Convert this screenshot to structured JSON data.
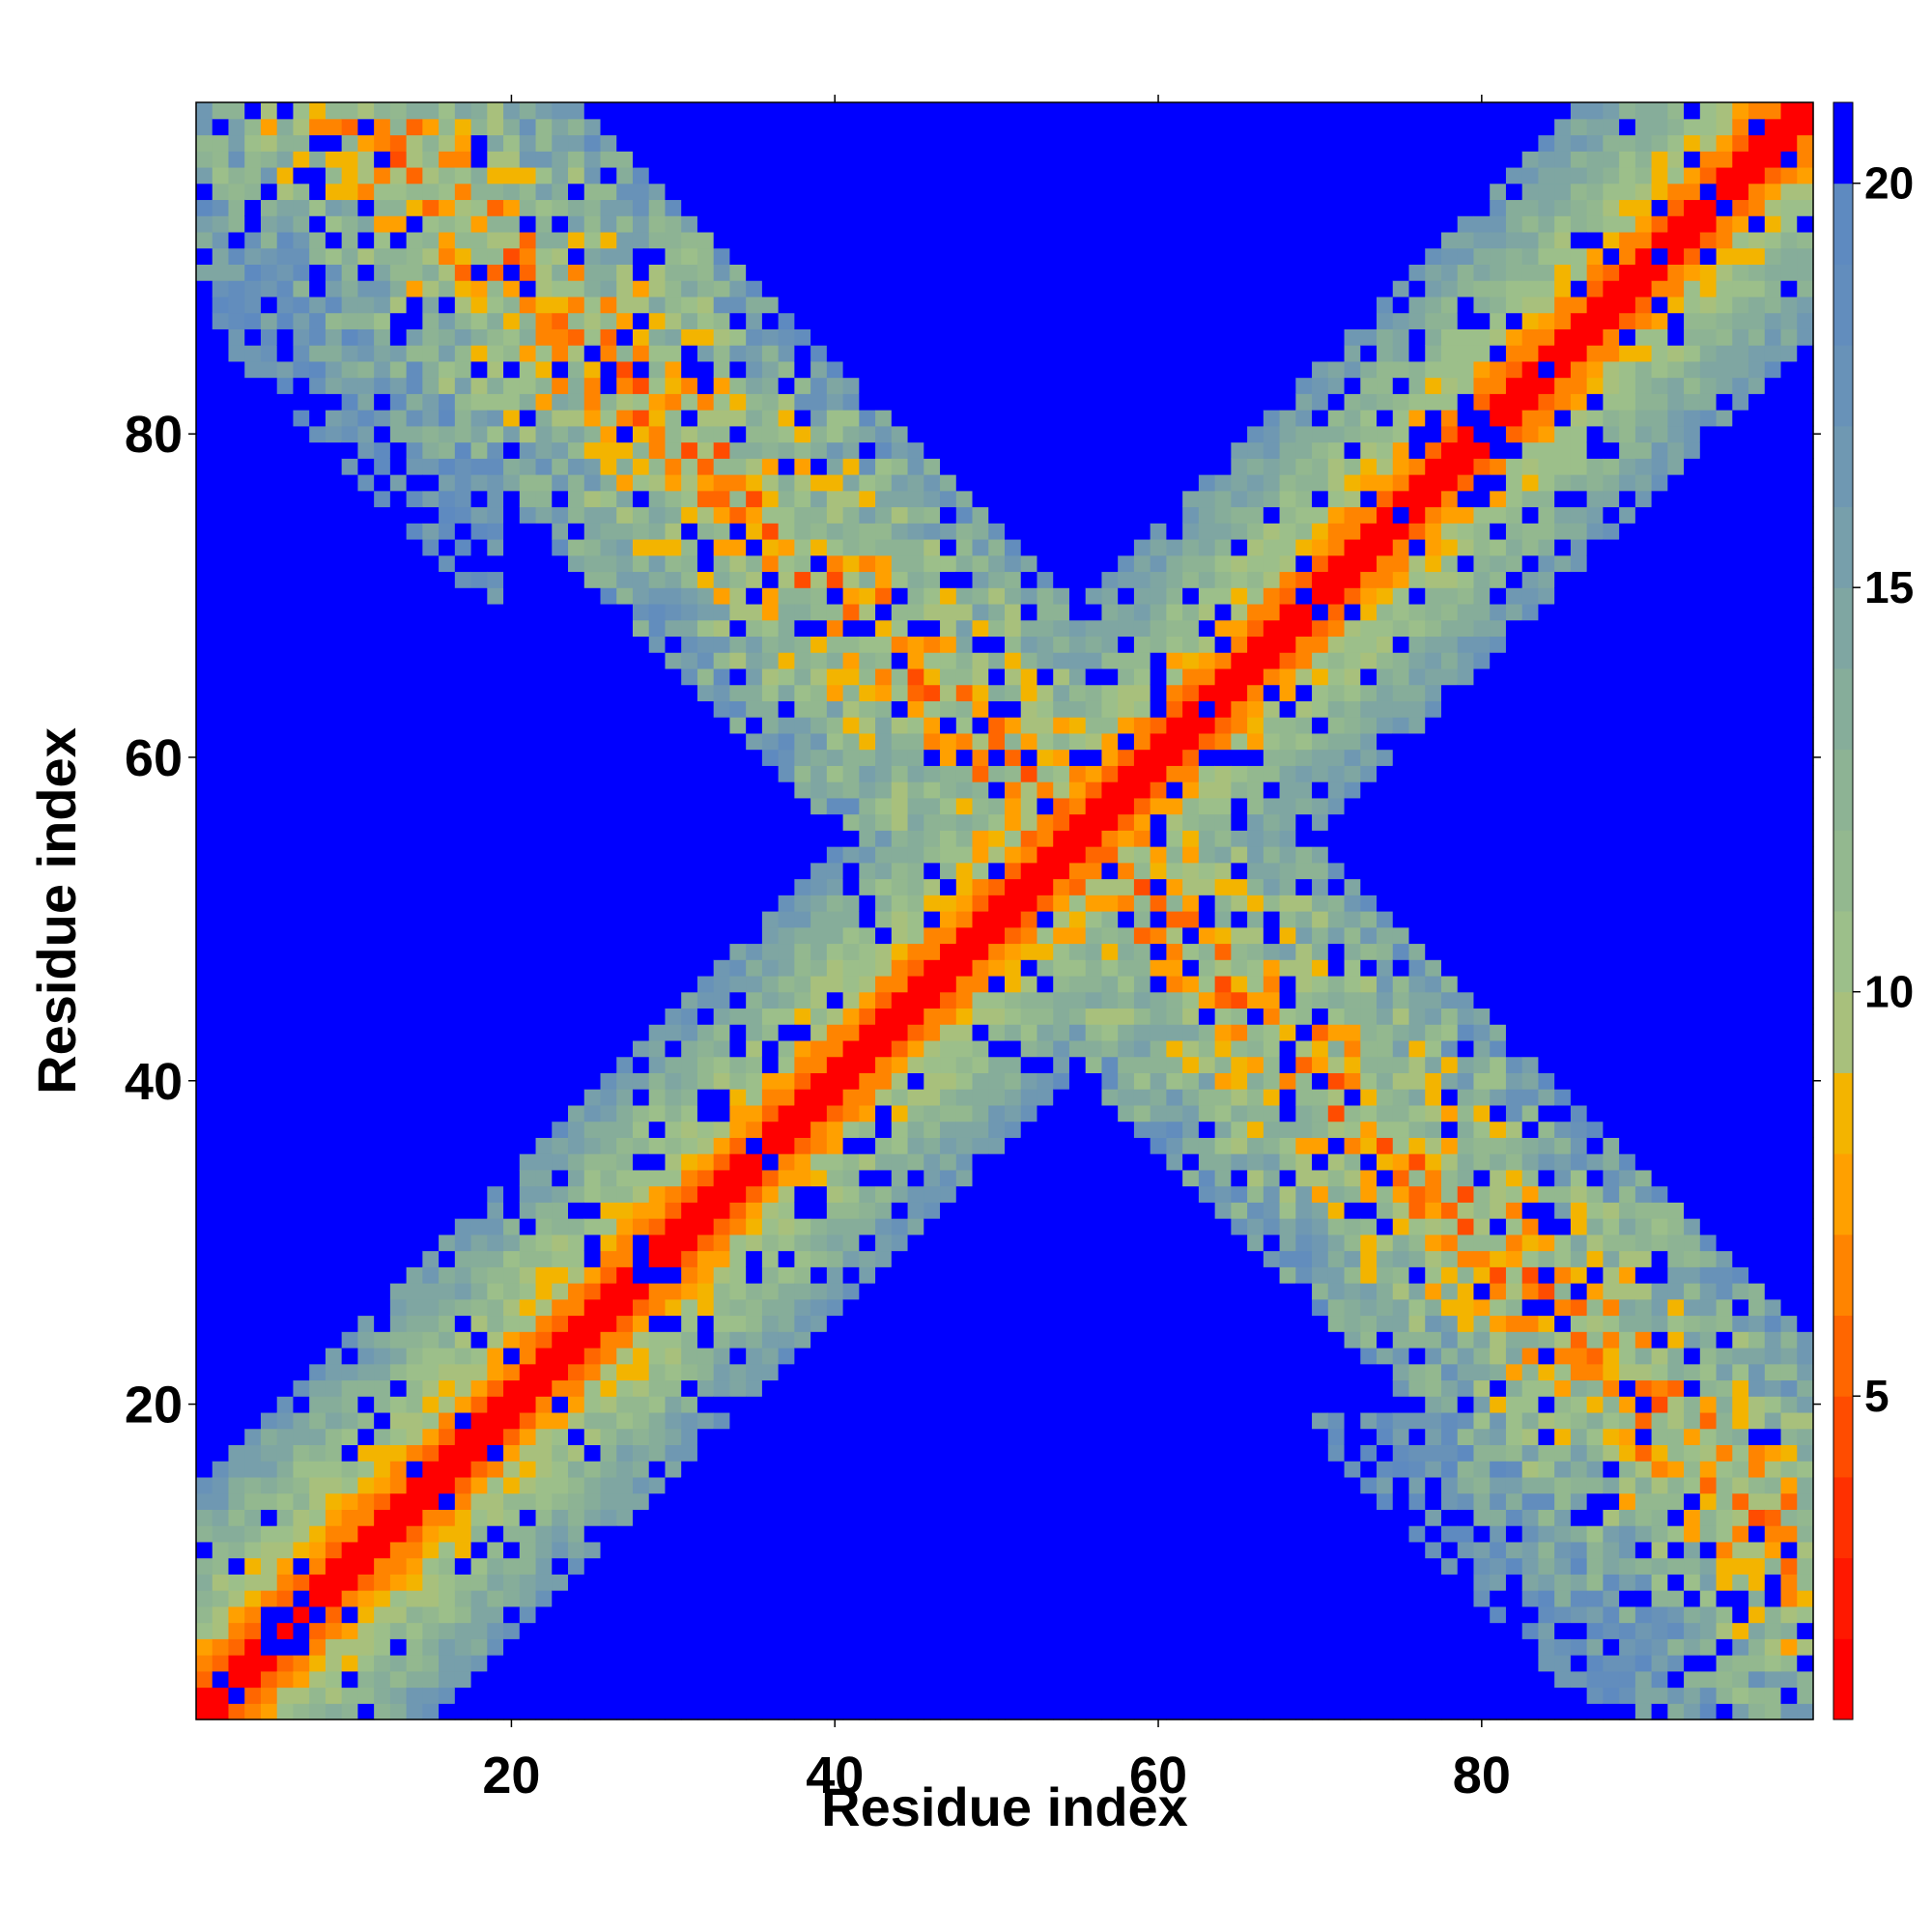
{
  "chart_data": {
    "type": "heatmap",
    "title": "",
    "xlabel": "Residue index",
    "ylabel": "Residue index",
    "n_residues": 100,
    "x_range": [
      1,
      100
    ],
    "y_range": [
      1,
      100
    ],
    "x_ticks": [
      20,
      40,
      60,
      80
    ],
    "y_ticks": [
      20,
      40,
      60,
      80
    ],
    "x_tick_labels": [
      "20",
      "40",
      "60",
      "80"
    ],
    "y_tick_labels": [
      "20",
      "40",
      "60",
      "80"
    ],
    "grid": false,
    "colorbar": {
      "range": [
        1,
        21
      ],
      "ticks": [
        5,
        10,
        15,
        20
      ],
      "tick_labels": [
        "5",
        "10",
        "15",
        "20"
      ],
      "placement": "right",
      "levels": [
        {
          "lo": 1,
          "hi": 2,
          "color": "#ff0000"
        },
        {
          "lo": 2,
          "hi": 3,
          "color": "#ff1800"
        },
        {
          "lo": 3,
          "hi": 4,
          "color": "#ff3000"
        },
        {
          "lo": 4,
          "hi": 5,
          "color": "#ff4c00"
        },
        {
          "lo": 5,
          "hi": 6,
          "color": "#ff6600"
        },
        {
          "lo": 6,
          "hi": 7,
          "color": "#ff8400"
        },
        {
          "lo": 7,
          "hi": 8,
          "color": "#ffa000"
        },
        {
          "lo": 8,
          "hi": 9,
          "color": "#f3b400"
        },
        {
          "lo": 9,
          "hi": 10,
          "color": "#a8c07c"
        },
        {
          "lo": 10,
          "hi": 11,
          "color": "#9cbf8a"
        },
        {
          "lo": 11,
          "hi": 12,
          "color": "#93b88f"
        },
        {
          "lo": 12,
          "hi": 13,
          "color": "#8db394"
        },
        {
          "lo": 13,
          "hi": 14,
          "color": "#86ad9a"
        },
        {
          "lo": 14,
          "hi": 15,
          "color": "#7fa6a2"
        },
        {
          "lo": 15,
          "hi": 16,
          "color": "#779fab"
        },
        {
          "lo": 16,
          "hi": 17,
          "color": "#6f98b2"
        },
        {
          "lo": 17,
          "hi": 18,
          "color": "#6892b8"
        },
        {
          "lo": 18,
          "hi": 19,
          "color": "#628dbd"
        },
        {
          "lo": 19,
          "hi": 20,
          "color": "#5e8ac0"
        },
        {
          "lo": 20,
          "hi": 21,
          "color": "#0000ff"
        }
      ]
    },
    "description_of_values": "Symmetric residue-residue distance map: main diagonal ~1-3, broad diagonal band ~4-15, anti-diagonal band (i+j ~ 110) ~6-19, background >= 20",
    "diagonal_band": {
      "core_value": 1.5,
      "half_width_residues": 12
    },
    "antidiagonal_band": {
      "center_sum": 110,
      "half_width_residues": 14,
      "min_value": 6
    }
  }
}
